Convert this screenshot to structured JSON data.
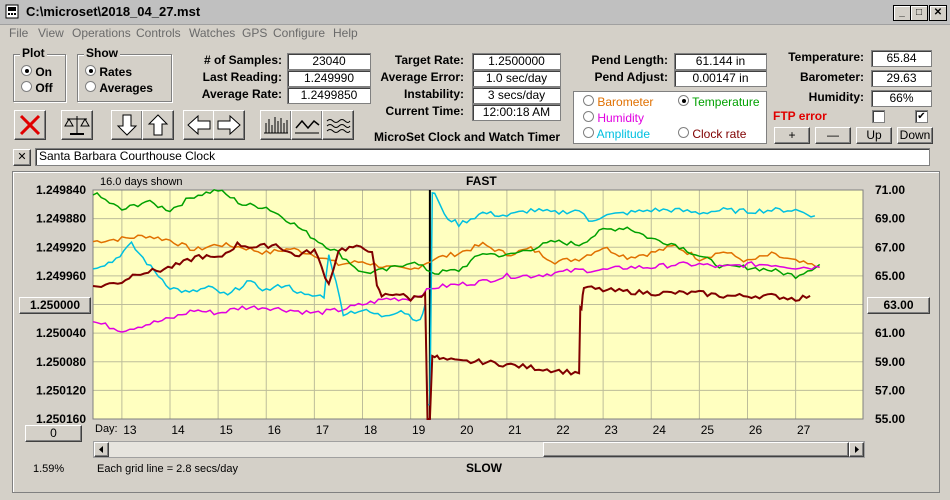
{
  "window": {
    "title": "C:\\microset\\2018_04_27.mst"
  },
  "menu": [
    "File",
    "View",
    "Operations",
    "Controls",
    "Watches",
    "GPS",
    "Configure",
    "Help"
  ],
  "plot_group": {
    "title": "Plot",
    "options": [
      "On",
      "Off"
    ],
    "selected": "On"
  },
  "show_group": {
    "title": "Show",
    "options": [
      "Rates",
      "Averages"
    ],
    "selected": "Rates"
  },
  "stats": {
    "samples_label": "# of Samples:",
    "samples": "23040",
    "last_label": "Last Reading:",
    "last": "1.249990",
    "avg_label": "Average Rate:",
    "avg": "1.2499850",
    "target_label": "Target Rate:",
    "target": "1.2500000",
    "err_label": "Average Error:",
    "err": "1.0 sec/day",
    "inst_label": "Instability:",
    "inst": "3 secs/day",
    "time_label": "Current Time:",
    "time": "12:00:18 AM",
    "pendlen_label": "Pend Length:",
    "pendlen": "61.144 in",
    "pendadj_label": "Pend Adjust:",
    "pendadj": "0.00147 in",
    "temp_label": "Temperature:",
    "temp": "65.84",
    "baro_label": "Barometer:",
    "baro": "29.63",
    "hum_label": "Humidity:",
    "hum": "66%"
  },
  "app_caption": "MicroSet Clock and Watch Timer",
  "sensors": {
    "options": [
      {
        "label": "Barometer",
        "color": "#e07000"
      },
      {
        "label": "Temperature",
        "color": "#00a000"
      },
      {
        "label": "Humidity",
        "color": "#e000e0"
      },
      {
        "label": "Amplitude",
        "color": "#00c0e0"
      },
      {
        "label": "Clock rate",
        "color": "#800000"
      }
    ],
    "selected": "Temperature"
  },
  "ftp": {
    "label": "FTP error",
    "checked1": "",
    "checked2": "✔"
  },
  "adjust_buttons": {
    "plus": "+",
    "minus": "—",
    "up": "Up",
    "down": "Down"
  },
  "clock_name": "Santa Barbara Courthouse Clock",
  "close_x": "✕",
  "chart_header": {
    "days_shown": "16.0 days shown",
    "fast": "FAST",
    "slow": "SLOW",
    "grid_note": "Each grid line = 2.8 secs/day",
    "day_label": "Day:"
  },
  "left_value_button": "1.250000",
  "right_value_button": "63.00",
  "zero_button": "0",
  "percent": "1.59%",
  "chart_data": {
    "type": "line",
    "x_range": [
      12.4,
      28.4
    ],
    "x_ticks": [
      13,
      14,
      15,
      16,
      17,
      18,
      19,
      20,
      21,
      22,
      23,
      24,
      25,
      26,
      27
    ],
    "y_left_ticks": [
      "1.249840",
      "1.249880",
      "1.249920",
      "1.249960",
      "1.250000",
      "1.250040",
      "1.250080",
      "1.250120",
      "1.250160"
    ],
    "y_right_ticks": [
      "71.00",
      "69.00",
      "67.00",
      "65.00",
      "63.00",
      "61.00",
      "59.00",
      "57.00",
      "55.00"
    ],
    "y_left_range": [
      1.24984,
      1.25016
    ],
    "y_right_range": [
      55,
      71
    ],
    "series": [
      {
        "name": "Barometer",
        "color": "#e07000",
        "x": [
          12.4,
          13,
          13.5,
          14,
          14.5,
          15,
          15.5,
          16,
          16.5,
          17,
          17.5,
          18,
          18.5,
          19,
          19.5,
          20,
          20.5,
          21,
          21.5,
          22,
          22.5,
          23,
          23.5,
          24,
          24.5,
          25,
          25.5,
          26,
          26.5,
          27,
          27.5
        ],
        "y": [
          67.4,
          67.6,
          67.8,
          67.5,
          66.8,
          67.2,
          67.0,
          66.6,
          66.9,
          66.5,
          65.8,
          66.0,
          65.6,
          65.4,
          66.2,
          66.6,
          67.2,
          66.5,
          66.9,
          66.0,
          66.2,
          67.0,
          66.3,
          66.6,
          67.1,
          66.2,
          66.7,
          66.0,
          66.5,
          66.0,
          65.6
        ]
      },
      {
        "name": "Temperature",
        "color": "#00a000",
        "x": [
          12.4,
          13,
          13.5,
          14,
          14.5,
          15,
          15.5,
          16,
          16.5,
          17,
          17.5,
          18,
          18.5,
          19,
          19.5,
          20,
          20.5,
          21,
          21.5,
          22,
          22.5,
          23,
          23.5,
          24,
          24.5,
          25,
          25.5,
          26,
          26.5,
          27,
          27.5
        ],
        "y": [
          70.8,
          69.6,
          70.2,
          69.6,
          70.6,
          71.0,
          70.0,
          69.8,
          68.8,
          67.6,
          66.6,
          65.2,
          65.4,
          66.0,
          65.2,
          65.4,
          66.6,
          66.4,
          66.9,
          67.4,
          67.2,
          68.2,
          68.4,
          67.6,
          67.2,
          66.4,
          65.6,
          65.6,
          65.4,
          65.0,
          65.8
        ]
      },
      {
        "name": "Humidity",
        "color": "#e000e0",
        "x": [
          12.4,
          13,
          13.5,
          14,
          14.5,
          15,
          15.5,
          16,
          16.5,
          17,
          17.5,
          18,
          18.5,
          19,
          19.5,
          20,
          20.5,
          21,
          21.5,
          22,
          22.5,
          23,
          23.5,
          24,
          24.5,
          25,
          25.5,
          26,
          26.5,
          27,
          27.5
        ],
        "y": [
          61.8,
          61.2,
          61.6,
          62.0,
          62.6,
          62.4,
          62.8,
          62.8,
          62.6,
          62.4,
          62.6,
          63.0,
          63.4,
          63.4,
          64.2,
          64.4,
          64.6,
          65.0,
          65.0,
          65.2,
          65.4,
          65.4,
          65.6,
          65.6,
          65.8,
          65.8,
          65.6,
          65.8,
          65.8,
          65.6,
          65.6
        ]
      },
      {
        "name": "Amplitude",
        "color": "#00c0e0",
        "x": [
          12.4,
          12.8,
          13.2,
          13.6,
          14,
          14.4,
          14.8,
          15.2,
          15.6,
          16,
          16.4,
          16.8,
          17.2,
          17.3,
          17.6,
          18,
          18.4,
          18.8,
          19.2,
          19.3,
          19.4,
          19.5,
          19.7,
          20,
          20.5,
          21,
          21.5,
          22,
          22.5,
          22.7,
          23,
          23.5,
          24,
          24.5,
          25,
          25.5,
          26,
          26.5,
          27,
          27.4
        ],
        "y": [
          65.6,
          66.0,
          67.2,
          65.6,
          64.2,
          63.8,
          64.2,
          63.6,
          64.6,
          64.0,
          64.4,
          63.6,
          63.6,
          66.6,
          62.4,
          62.6,
          62.2,
          62.6,
          61.8,
          63.0,
          56.0,
          70.8,
          69.2,
          68.6,
          69.4,
          69.2,
          69.6,
          69.4,
          69.6,
          68.8,
          69.2,
          69.4,
          69.6,
          69.6,
          69.4,
          69.6,
          69.5,
          69.6,
          69.6,
          69.2
        ]
      },
      {
        "name": "Clock rate",
        "color": "#800000",
        "x": [
          12.4,
          13,
          13.3,
          13.8,
          14.2,
          14.6,
          15,
          15.4,
          15.8,
          16.2,
          16.6,
          17,
          17.3,
          17.5,
          17.8,
          18.2,
          18.3,
          18.4,
          18.7,
          19,
          19.3,
          19.4,
          19.5,
          19.6,
          20,
          20.5,
          21,
          21.5,
          22,
          22.5,
          22.55,
          22.6,
          23,
          23.5,
          24,
          24.5,
          25,
          25.5,
          26,
          26.5,
          27,
          27.3
        ],
        "y": [
          64.2,
          64.6,
          65.2,
          65.4,
          65.8,
          66.4,
          66.2,
          67.2,
          67.0,
          67.2,
          66.4,
          66.8,
          64.4,
          66.8,
          67.0,
          66.8,
          64.2,
          63.6,
          63.8,
          63.4,
          63.8,
          55.0,
          59.4,
          59.2,
          59.0,
          59.0,
          58.8,
          58.6,
          58.4,
          58.2,
          62.8,
          64.2,
          64.0,
          63.9,
          63.8,
          63.8,
          63.8,
          63.6,
          63.6,
          63.6,
          63.4,
          63.6
        ]
      }
    ]
  }
}
